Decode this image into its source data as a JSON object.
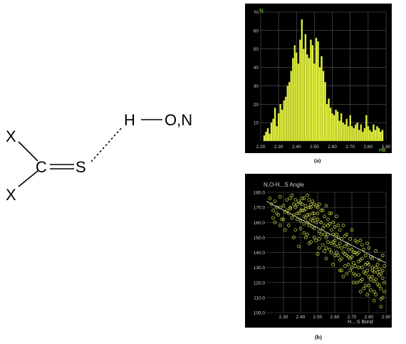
{
  "molecule": {
    "atoms": {
      "x_top": "X",
      "x_bottom": "X",
      "carbon": "C",
      "sulfur": "S",
      "hydrogen": "H",
      "donor": "O,N"
    }
  },
  "colors": {
    "background": "#000000",
    "bars": "#e4f242",
    "bar_edge": "#9aa61a",
    "points": "#d9e84a",
    "grid": "#5a5a5a",
    "axis_text": "#cfcfcf",
    "label_green": "#7fdc3a",
    "trend": "#bfbfbf"
  },
  "chart_data": [
    {
      "type": "bar",
      "caption": "(a)",
      "ylabel": "N",
      "xlabel": "HB",
      "xlim": [
        2.2,
        2.9
      ],
      "ylim": [
        0,
        70
      ],
      "xticks": [
        "2.20",
        "2.30",
        "2.40",
        "2.50",
        "2.60",
        "2.70",
        "2.80",
        "2.90"
      ],
      "yticks": [
        "10",
        "20",
        "30",
        "40",
        "50",
        "60",
        "70"
      ],
      "bin_width": 0.01,
      "x": [
        2.22,
        2.23,
        2.24,
        2.25,
        2.26,
        2.27,
        2.28,
        2.29,
        2.3,
        2.31,
        2.32,
        2.33,
        2.34,
        2.35,
        2.36,
        2.37,
        2.38,
        2.39,
        2.4,
        2.41,
        2.42,
        2.43,
        2.44,
        2.45,
        2.46,
        2.47,
        2.48,
        2.49,
        2.5,
        2.51,
        2.52,
        2.53,
        2.54,
        2.55,
        2.56,
        2.57,
        2.58,
        2.59,
        2.6,
        2.61,
        2.62,
        2.63,
        2.64,
        2.65,
        2.66,
        2.67,
        2.68,
        2.69,
        2.7,
        2.71,
        2.72,
        2.73,
        2.74,
        2.75,
        2.76,
        2.77,
        2.78,
        2.79,
        2.8,
        2.81,
        2.82,
        2.83,
        2.84,
        2.85,
        2.86,
        2.87,
        2.88
      ],
      "values": [
        3,
        5,
        7,
        4,
        10,
        12,
        18,
        8,
        15,
        20,
        17,
        22,
        24,
        30,
        32,
        38,
        45,
        52,
        48,
        42,
        55,
        66,
        50,
        58,
        47,
        45,
        55,
        52,
        42,
        56,
        54,
        40,
        46,
        38,
        32,
        20,
        23,
        18,
        15,
        14,
        17,
        16,
        11,
        15,
        10,
        9,
        12,
        8,
        14,
        8,
        7,
        9,
        10,
        6,
        9,
        5,
        7,
        14,
        8,
        6,
        5,
        9,
        6,
        8,
        7,
        5,
        6
      ]
    },
    {
      "type": "scatter",
      "caption": "(b)",
      "title": "N,O-H...S Angle",
      "xlabel": "H....S Bond",
      "xlim": [
        2.2,
        2.9
      ],
      "ylim": [
        100,
        180
      ],
      "xticks": [
        "2.30",
        "2.40",
        "2.50",
        "2.60",
        "2.70",
        "2.80",
        "2.90"
      ],
      "yticks": [
        "100.0",
        "110.0",
        "120.0",
        "130.0",
        "140.0",
        "150.0",
        "160.0",
        "170.0",
        "180.0"
      ],
      "trend": {
        "x": [
          2.2,
          2.9
        ],
        "y": [
          174,
          133
        ]
      },
      "points": [
        [
          2.22,
          176
        ],
        [
          2.23,
          172
        ],
        [
          2.24,
          168
        ],
        [
          2.25,
          174
        ],
        [
          2.26,
          170
        ],
        [
          2.27,
          165
        ],
        [
          2.28,
          177
        ],
        [
          2.29,
          162
        ],
        [
          2.3,
          171
        ],
        [
          2.31,
          167
        ],
        [
          2.32,
          175
        ],
        [
          2.33,
          158
        ],
        [
          2.34,
          169
        ],
        [
          2.35,
          163
        ],
        [
          2.36,
          172
        ],
        [
          2.37,
          155
        ],
        [
          2.38,
          166
        ],
        [
          2.39,
          174
        ],
        [
          2.4,
          161
        ],
        [
          2.41,
          168
        ],
        [
          2.42,
          159
        ],
        [
          2.43,
          171
        ],
        [
          2.44,
          152
        ],
        [
          2.45,
          165
        ],
        [
          2.46,
          170
        ],
        [
          2.47,
          157
        ],
        [
          2.48,
          163
        ],
        [
          2.49,
          148
        ],
        [
          2.5,
          166
        ],
        [
          2.51,
          154
        ],
        [
          2.52,
          160
        ],
        [
          2.53,
          145
        ],
        [
          2.54,
          158
        ],
        [
          2.55,
          150
        ],
        [
          2.56,
          162
        ],
        [
          2.57,
          142
        ],
        [
          2.58,
          155
        ],
        [
          2.59,
          147
        ],
        [
          2.6,
          138
        ],
        [
          2.61,
          152
        ],
        [
          2.62,
          144
        ],
        [
          2.63,
          135
        ],
        [
          2.64,
          149
        ],
        [
          2.65,
          140
        ],
        [
          2.66,
          131
        ],
        [
          2.67,
          146
        ],
        [
          2.68,
          137
        ],
        [
          2.69,
          128
        ],
        [
          2.7,
          142
        ],
        [
          2.71,
          133
        ],
        [
          2.72,
          125
        ],
        [
          2.73,
          139
        ],
        [
          2.74,
          130
        ],
        [
          2.75,
          121
        ],
        [
          2.76,
          136
        ],
        [
          2.77,
          127
        ],
        [
          2.78,
          118
        ],
        [
          2.79,
          133
        ],
        [
          2.8,
          124
        ],
        [
          2.81,
          115
        ],
        [
          2.82,
          130
        ],
        [
          2.83,
          121
        ],
        [
          2.84,
          112
        ],
        [
          2.85,
          127
        ],
        [
          2.86,
          118
        ],
        [
          2.87,
          109
        ],
        [
          2.88,
          123
        ],
        [
          2.89,
          114
        ],
        [
          2.25,
          160
        ],
        [
          2.28,
          158
        ],
        [
          2.33,
          166
        ],
        [
          2.36,
          150
        ],
        [
          2.39,
          144
        ],
        [
          2.41,
          176
        ],
        [
          2.43,
          163
        ],
        [
          2.44,
          178
        ],
        [
          2.46,
          147
        ],
        [
          2.48,
          172
        ],
        [
          2.5,
          139
        ],
        [
          2.52,
          168
        ],
        [
          2.54,
          141
        ],
        [
          2.56,
          152
        ],
        [
          2.58,
          166
        ],
        [
          2.6,
          148
        ],
        [
          2.62,
          158
        ],
        [
          2.64,
          128
        ],
        [
          2.66,
          151
        ],
        [
          2.68,
          145
        ],
        [
          2.7,
          155
        ],
        [
          2.72,
          148
        ],
        [
          2.74,
          140
        ],
        [
          2.76,
          145
        ],
        [
          2.78,
          138
        ],
        [
          2.8,
          143
        ],
        [
          2.82,
          136
        ],
        [
          2.84,
          141
        ],
        [
          2.86,
          135
        ],
        [
          2.88,
          138
        ],
        [
          2.35,
          178
        ],
        [
          2.37,
          175
        ],
        [
          2.4,
          173
        ],
        [
          2.42,
          176
        ],
        [
          2.45,
          175
        ],
        [
          2.47,
          174
        ],
        [
          2.49,
          171
        ],
        [
          2.51,
          172
        ],
        [
          2.53,
          168
        ],
        [
          2.55,
          171
        ],
        [
          2.57,
          166
        ],
        [
          2.59,
          160
        ],
        [
          2.61,
          164
        ],
        [
          2.63,
          155
        ],
        [
          2.65,
          158
        ],
        [
          2.67,
          152
        ],
        [
          2.69,
          149
        ],
        [
          2.71,
          140
        ],
        [
          2.73,
          147
        ],
        [
          2.75,
          135
        ],
        [
          2.77,
          142
        ],
        [
          2.79,
          128
        ],
        [
          2.81,
          137
        ],
        [
          2.83,
          127
        ],
        [
          2.85,
          132
        ],
        [
          2.87,
          126
        ],
        [
          2.89,
          131
        ],
        [
          2.31,
          155
        ],
        [
          2.34,
          176
        ],
        [
          2.38,
          162
        ],
        [
          2.4,
          156
        ],
        [
          2.43,
          150
        ],
        [
          2.45,
          158
        ],
        [
          2.47,
          166
        ],
        [
          2.49,
          160
        ],
        [
          2.51,
          149
        ],
        [
          2.53,
          156
        ],
        [
          2.55,
          143
        ],
        [
          2.57,
          159
        ],
        [
          2.59,
          152
        ],
        [
          2.61,
          140
        ],
        [
          2.63,
          146
        ],
        [
          2.65,
          124
        ],
        [
          2.67,
          138
        ],
        [
          2.69,
          136
        ],
        [
          2.71,
          126
        ],
        [
          2.73,
          120
        ],
        [
          2.75,
          148
        ],
        [
          2.77,
          116
        ],
        [
          2.79,
          146
        ],
        [
          2.81,
          122
        ],
        [
          2.83,
          114
        ],
        [
          2.85,
          119
        ],
        [
          2.87,
          116
        ],
        [
          2.89,
          120
        ],
        [
          2.42,
          168
        ],
        [
          2.44,
          165
        ],
        [
          2.46,
          162
        ],
        [
          2.48,
          156
        ],
        [
          2.5,
          162
        ],
        [
          2.52,
          152
        ],
        [
          2.54,
          164
        ],
        [
          2.56,
          158
        ],
        [
          2.58,
          146
        ],
        [
          2.6,
          157
        ],
        [
          2.62,
          150
        ],
        [
          2.64,
          143
        ],
        [
          2.66,
          144
        ],
        [
          2.68,
          132
        ],
        [
          2.7,
          130
        ],
        [
          2.72,
          140
        ],
        [
          2.74,
          125
        ],
        [
          2.76,
          130
        ],
        [
          2.78,
          132
        ],
        [
          2.8,
          118
        ],
        [
          2.82,
          124
        ],
        [
          2.84,
          130
        ],
        [
          2.86,
          125
        ],
        [
          2.88,
          110
        ],
        [
          2.41,
          172
        ],
        [
          2.43,
          169
        ],
        [
          2.45,
          170
        ],
        [
          2.47,
          161
        ],
        [
          2.39,
          166
        ],
        [
          2.37,
          170
        ],
        [
          2.44,
          160
        ],
        [
          2.46,
          172
        ],
        [
          2.48,
          166
        ],
        [
          2.5,
          170
        ],
        [
          2.42,
          164
        ],
        [
          2.4,
          168
        ],
        [
          2.38,
          172
        ],
        [
          2.36,
          165
        ],
        [
          2.34,
          170
        ],
        [
          2.32,
          168
        ],
        [
          2.3,
          162
        ],
        [
          2.28,
          170
        ],
        [
          2.26,
          166
        ],
        [
          2.24,
          163
        ],
        [
          2.52,
          160
        ],
        [
          2.54,
          152
        ],
        [
          2.56,
          147
        ],
        [
          2.58,
          140
        ],
        [
          2.6,
          145
        ],
        [
          2.62,
          138
        ],
        [
          2.64,
          136
        ],
        [
          2.66,
          139
        ],
        [
          2.68,
          142
        ],
        [
          2.7,
          137
        ],
        [
          2.72,
          131
        ],
        [
          2.74,
          134
        ],
        [
          2.76,
          122
        ],
        [
          2.78,
          126
        ],
        [
          2.8,
          132
        ],
        [
          2.82,
          128
        ],
        [
          2.84,
          122
        ],
        [
          2.86,
          129
        ],
        [
          2.88,
          128
        ],
        [
          2.42,
          153
        ],
        [
          2.45,
          146
        ],
        [
          2.48,
          150
        ],
        [
          2.51,
          143
        ],
        [
          2.55,
          136
        ],
        [
          2.59,
          132
        ],
        [
          2.63,
          128
        ],
        [
          2.67,
          126
        ],
        [
          2.71,
          120
        ],
        [
          2.75,
          114
        ],
        [
          2.79,
          112
        ],
        [
          2.83,
          108
        ],
        [
          2.87,
          104
        ]
      ]
    }
  ]
}
